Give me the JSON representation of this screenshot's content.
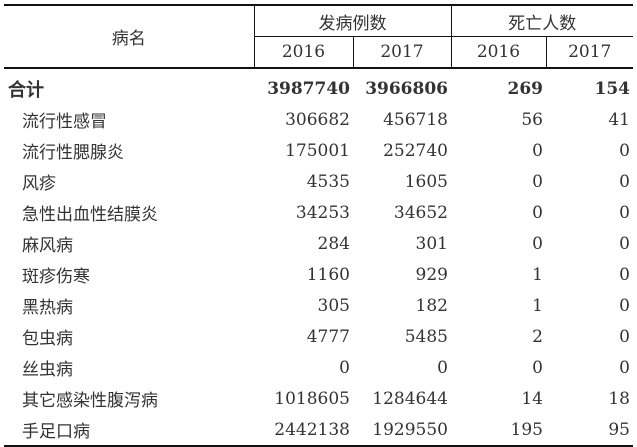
{
  "header": {
    "name": "病名",
    "cases": "发病例数",
    "deaths": "死亡人数",
    "years": [
      "2016",
      "2017",
      "2016",
      "2017"
    ]
  },
  "rows": [
    {
      "name": "合计",
      "v": [
        "3987740",
        "3966806",
        "269",
        "154"
      ]
    },
    {
      "name": "流行性感冒",
      "v": [
        "306682",
        "456718",
        "56",
        "41"
      ]
    },
    {
      "name": "流行性腮腺炎",
      "v": [
        "175001",
        "252740",
        "0",
        "0"
      ]
    },
    {
      "name": "风疹",
      "v": [
        "4535",
        "1605",
        "0",
        "0"
      ]
    },
    {
      "name": "急性出血性结膜炎",
      "v": [
        "34253",
        "34652",
        "0",
        "0"
      ]
    },
    {
      "name": "麻风病",
      "v": [
        "284",
        "301",
        "0",
        "0"
      ]
    },
    {
      "name": "斑疹伤寒",
      "v": [
        "1160",
        "929",
        "1",
        "0"
      ]
    },
    {
      "name": "黑热病",
      "v": [
        "305",
        "182",
        "1",
        "0"
      ]
    },
    {
      "name": "包虫病",
      "v": [
        "4777",
        "5485",
        "2",
        "0"
      ]
    },
    {
      "name": "丝虫病",
      "v": [
        "0",
        "0",
        "0",
        "0"
      ]
    },
    {
      "name": "其它感染性腹泻病",
      "v": [
        "1018605",
        "1284644",
        "14",
        "18"
      ]
    },
    {
      "name": "手足口病",
      "v": [
        "2442138",
        "1929550",
        "195",
        "95"
      ]
    }
  ]
}
